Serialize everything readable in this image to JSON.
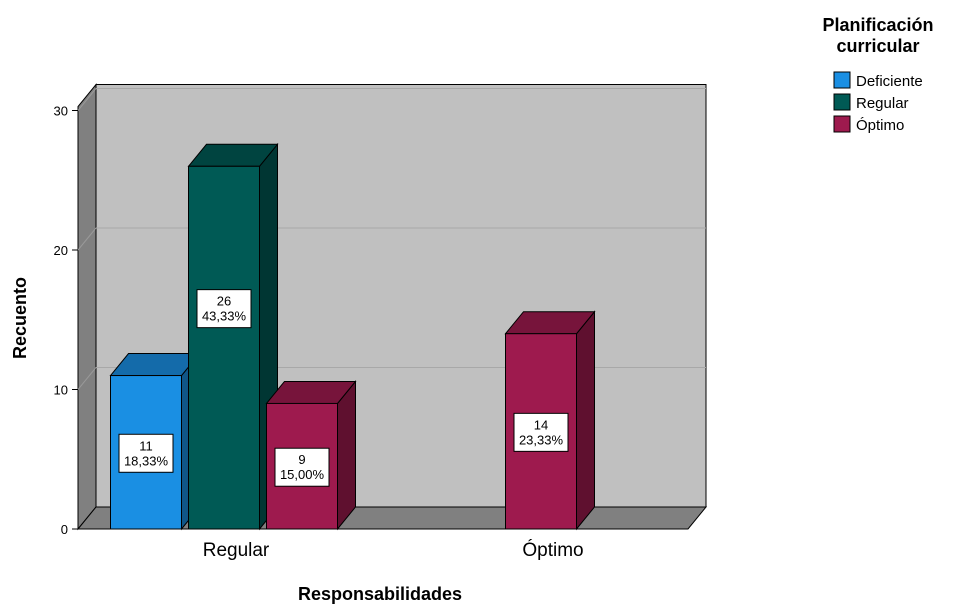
{
  "chart_data": {
    "type": "bar",
    "xlabel": "Responsabilidades",
    "ylabel": "Recuento",
    "ylim": [
      0,
      30
    ],
    "yticks": [
      0,
      10,
      20,
      30
    ],
    "grid": true,
    "legend_position": "top-right",
    "legend_title": "Planificación curricular",
    "legend_title_lines": [
      "Planificación",
      "curricular"
    ],
    "categories": [
      "Regular",
      "Óptimo"
    ],
    "series": [
      {
        "name": "Deficiente",
        "color": "#1a8fe3",
        "values": [
          11,
          null
        ],
        "labels": [
          "18,33%",
          ""
        ]
      },
      {
        "name": "Regular",
        "color": "#005a55",
        "values": [
          26,
          null
        ],
        "labels": [
          "43,33%",
          ""
        ]
      },
      {
        "name": "Óptimo",
        "color": "#9e1a4e",
        "values": [
          9,
          14
        ],
        "labels": [
          "15,00%",
          "23,33%"
        ]
      }
    ]
  }
}
